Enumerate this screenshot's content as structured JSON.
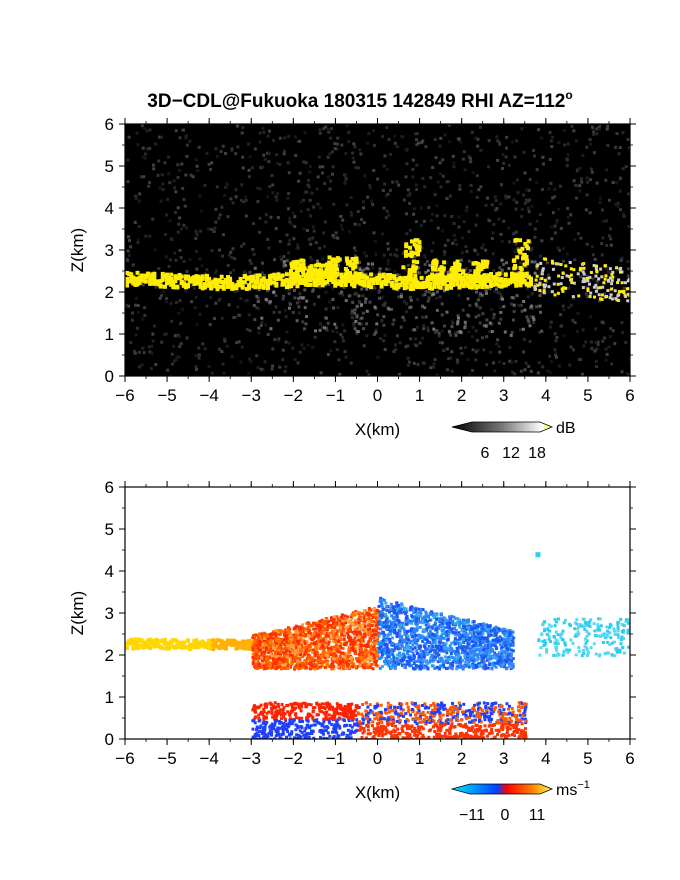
{
  "figure": {
    "title": "3D−CDL@Fukuoka 180315 142849 RHI AZ=112",
    "title_superscript": "o"
  },
  "chart_data": [
    {
      "type": "heatmap",
      "name": "reflectivity-panel",
      "quantity": "dB",
      "xlabel": "X(km)",
      "ylabel": "Z(km)",
      "xlim": [
        -6,
        6
      ],
      "ylim": [
        0,
        6
      ],
      "xticks": [
        -6,
        -5,
        -4,
        -3,
        -2,
        -1,
        0,
        1,
        2,
        3,
        4,
        5,
        6
      ],
      "yticks": [
        0,
        1,
        2,
        3,
        4,
        5,
        6
      ],
      "colorbar": {
        "label": "dB",
        "ticks": [
          6,
          12,
          18
        ],
        "colors": [
          "#000000",
          "#ffffff",
          "#ffff00"
        ]
      },
      "background_color": "#000000",
      "features": [
        {
          "kind": "layer",
          "x": [
            -6,
            3.6
          ],
          "z": [
            2.15,
            2.45
          ],
          "color": "#ffee00"
        },
        {
          "kind": "glow",
          "x": [
            -2.5,
            2.5
          ],
          "z": [
            0,
            1.2
          ],
          "color": "#c8c8c8"
        },
        {
          "kind": "clutter",
          "x": [
            3.7,
            6.0
          ],
          "z": [
            2.0,
            2.8
          ],
          "color": "#ffee00"
        }
      ]
    },
    {
      "type": "heatmap",
      "name": "velocity-panel",
      "quantity": "Doppler velocity",
      "xlabel": "X(km)",
      "ylabel": "Z(km)",
      "xlim": [
        -6,
        6
      ],
      "ylim": [
        0,
        6
      ],
      "xticks": [
        -6,
        -5,
        -4,
        -3,
        -2,
        -1,
        0,
        1,
        2,
        3,
        4,
        5,
        6
      ],
      "yticks": [
        0,
        1,
        2,
        3,
        4,
        5,
        6
      ],
      "colorbar": {
        "label": "ms",
        "label_superscript": "−1",
        "ticks": [
          "−11",
          "0",
          "11"
        ],
        "tick_values": [
          -11,
          0,
          11
        ],
        "colors": [
          "#00e8ff",
          "#0040ff",
          "#ff0000",
          "#ffff40"
        ]
      },
      "background_color": "#ffffff",
      "features": [
        {
          "kind": "layer",
          "x": [
            -6,
            -2.6
          ],
          "z": [
            2.2,
            2.42
          ],
          "color": "#ffd700"
        },
        {
          "kind": "approach",
          "x": [
            -3,
            0
          ],
          "z": [
            1.7,
            3.2
          ],
          "color": "#ff5a00"
        },
        {
          "kind": "recede",
          "x": [
            0,
            3.2
          ],
          "z": [
            1.7,
            3.6
          ],
          "color": "#3f7fff"
        },
        {
          "kind": "far",
          "x": [
            3.8,
            6.0
          ],
          "z": [
            2.0,
            2.9
          ],
          "color": "#30ccf0"
        }
      ]
    }
  ]
}
